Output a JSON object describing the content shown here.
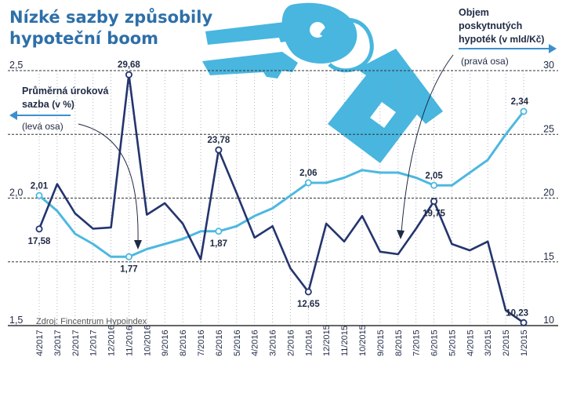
{
  "title_line1": "Nízké sazby způsobily",
  "title_line2": "hypoteční boom",
  "source": "Zdroj: Fincentrum Hypoindex",
  "colors": {
    "rate_line": "#4db8e0",
    "volume_line": "#24356e",
    "key_icon": "#48b6df",
    "arrow": "#3b8fcf",
    "gridline": "#333333",
    "text": "#1f2a44"
  },
  "chart_data": {
    "type": "line",
    "categories": [
      "4/2017",
      "3/2017",
      "2/2017",
      "1/2017",
      "12/2016",
      "11/2016",
      "10/2016",
      "9/2016",
      "8/2016",
      "7/2016",
      "6/2016",
      "5/2016",
      "4/2016",
      "3/2016",
      "2/2016",
      "1/2016",
      "12/2015",
      "11/2015",
      "10/2015",
      "9/2015",
      "8/2015",
      "7/2015",
      "6/2015",
      "5/2015",
      "4/2015",
      "3/2015",
      "2/2015",
      "1/2015"
    ],
    "left_axis": {
      "label": "Průměrná úroková sazba",
      "unit": "(v %)",
      "side_note": "(levá osa)",
      "ylim": [
        1.5,
        2.5
      ],
      "ticks": [
        "1,5",
        "2,0",
        "2,5"
      ],
      "tick_values": [
        1.5,
        2.0,
        2.5
      ]
    },
    "right_axis": {
      "label_line1": "Objem",
      "label_line2": "poskytnutých",
      "label_line3": "hypoték",
      "unit": "(v mld/Kč)",
      "side_note": "(pravá osa)",
      "ylim": [
        10,
        30
      ],
      "ticks": [
        "10",
        "15",
        "20",
        "25",
        "30"
      ],
      "tick_values": [
        10,
        15,
        20,
        25,
        30
      ]
    },
    "series": [
      {
        "name": "Průměrná úroková sazba (v %)",
        "axis": "left",
        "values": [
          2.01,
          1.95,
          1.86,
          1.82,
          1.77,
          1.77,
          1.8,
          1.82,
          1.84,
          1.87,
          1.87,
          1.89,
          1.93,
          1.96,
          2.01,
          2.06,
          2.06,
          2.08,
          2.11,
          2.1,
          2.1,
          2.08,
          2.05,
          2.05,
          2.1,
          2.15,
          2.25,
          2.34
        ],
        "labels": [
          {
            "index": 0,
            "text": "2,01",
            "pos": "above"
          },
          {
            "index": 5,
            "text": "1,77",
            "pos": "below"
          },
          {
            "index": 10,
            "text": "1,87",
            "pos": "below"
          },
          {
            "index": 15,
            "text": "2,06",
            "pos": "above"
          },
          {
            "index": 22,
            "text": "2,05",
            "pos": "above"
          },
          {
            "index": 27,
            "text": "2,34",
            "pos": "above"
          }
        ],
        "markers": [
          0,
          5,
          10,
          15,
          22,
          27
        ]
      },
      {
        "name": "Objem poskytnutých hypoték (v mld/Kč)",
        "axis": "right",
        "values": [
          17.58,
          21.1,
          18.8,
          17.6,
          17.7,
          29.68,
          18.7,
          19.6,
          18.0,
          15.2,
          23.78,
          20.4,
          16.9,
          17.8,
          14.5,
          12.65,
          18.0,
          16.6,
          18.6,
          15.8,
          15.6,
          17.6,
          19.75,
          16.4,
          15.9,
          16.6,
          11.2,
          10.23
        ],
        "labels": [
          {
            "index": 0,
            "text": "17,58",
            "pos": "below"
          },
          {
            "index": 5,
            "text": "29,68",
            "pos": "above"
          },
          {
            "index": 10,
            "text": "23,78",
            "pos": "above"
          },
          {
            "index": 15,
            "text": "12,65",
            "pos": "below"
          },
          {
            "index": 22,
            "text": "19,75",
            "pos": "below"
          },
          {
            "index": 27,
            "text": "10,23",
            "pos": "above"
          }
        ],
        "markers": [
          0,
          5,
          10,
          15,
          22,
          27
        ]
      }
    ]
  }
}
